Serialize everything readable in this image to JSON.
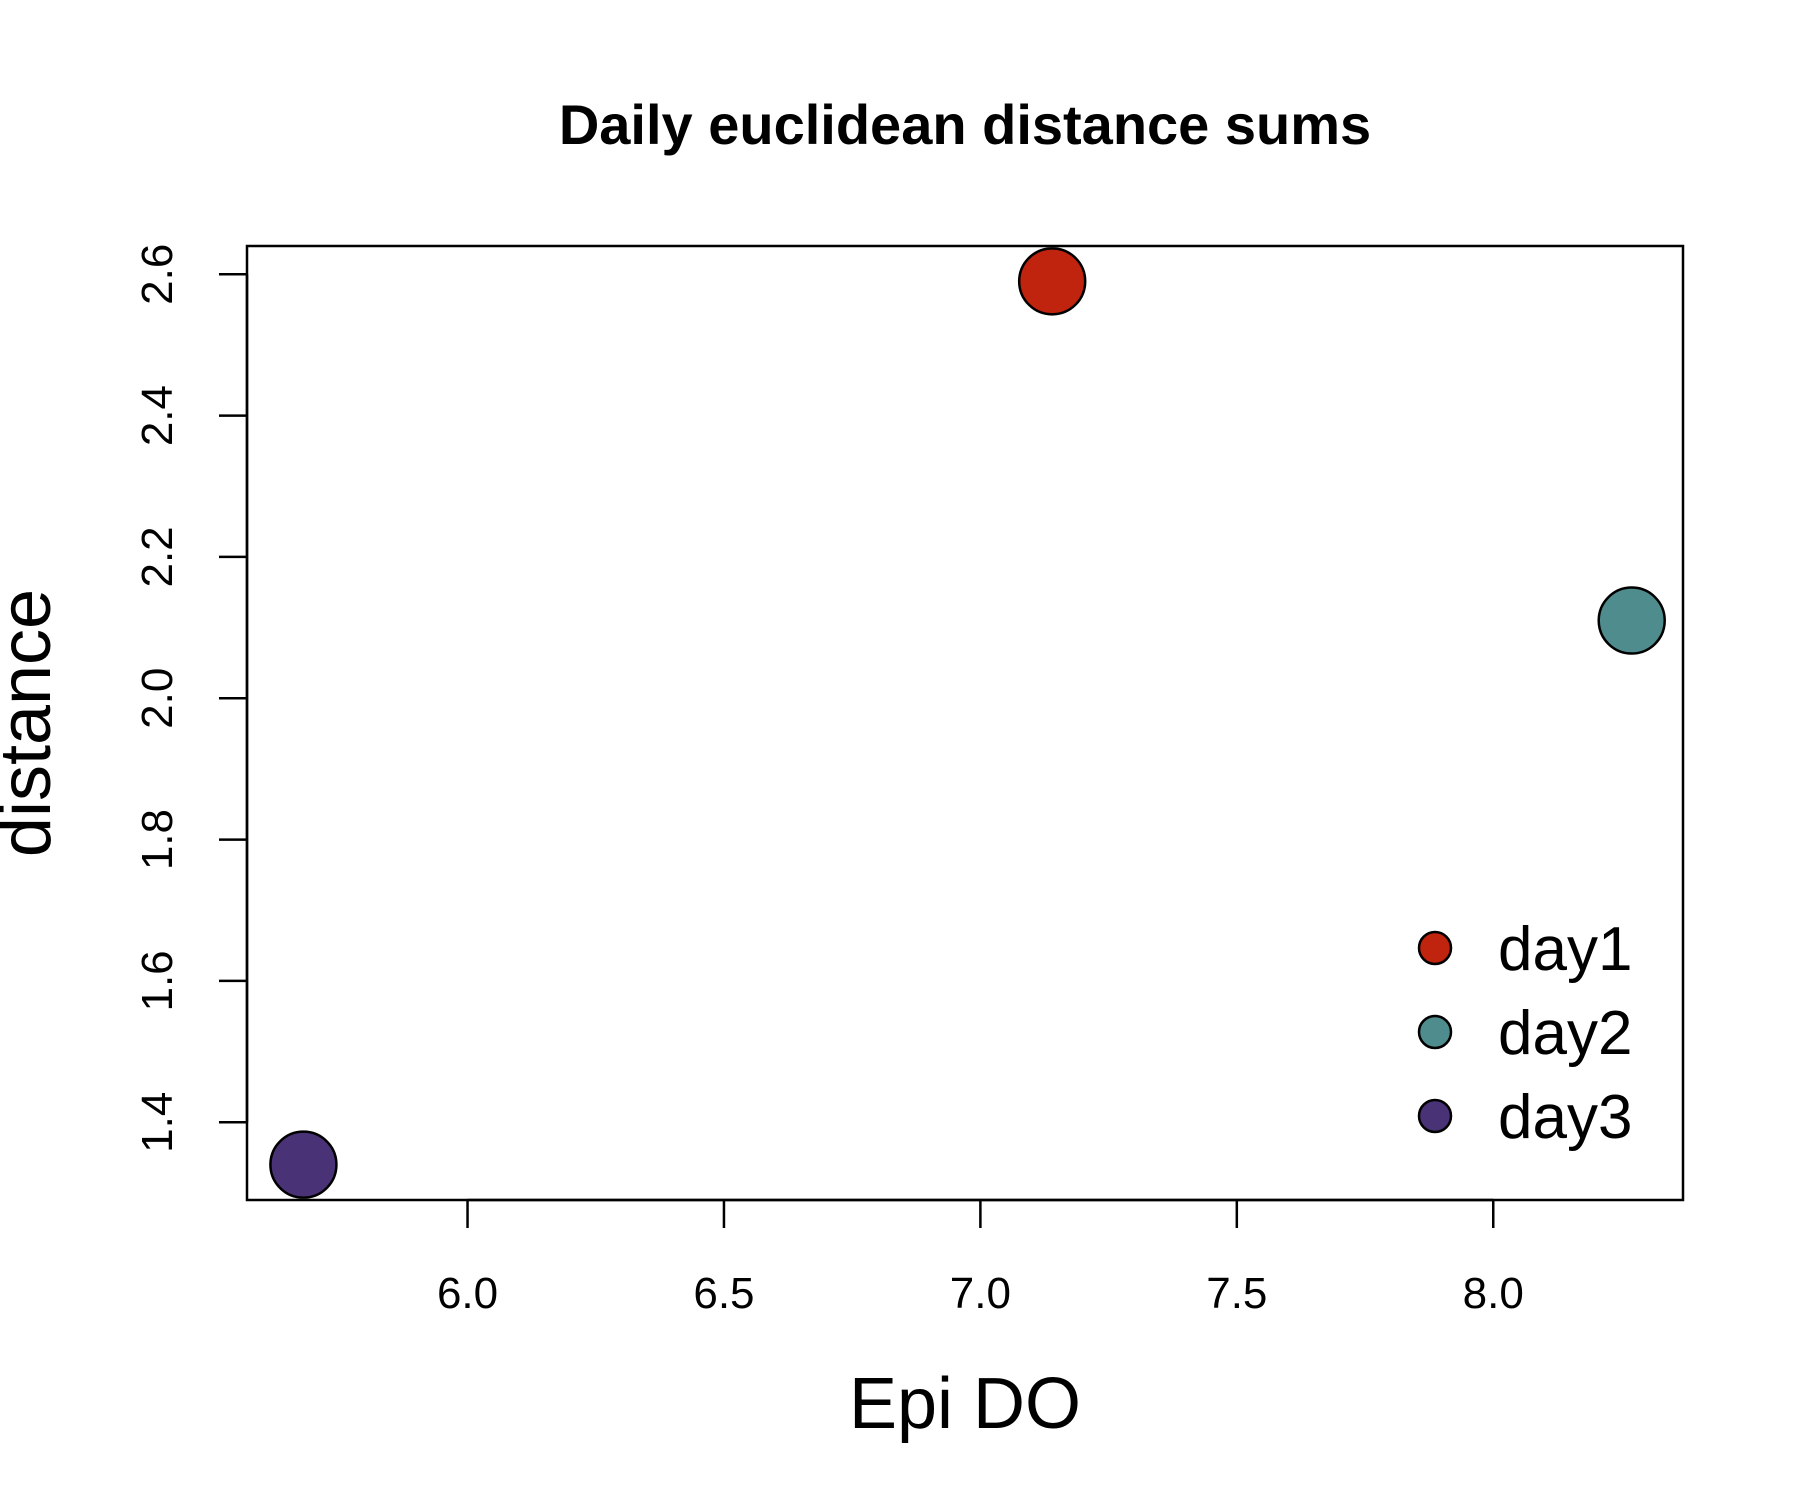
{
  "chart_data": {
    "type": "scatter",
    "title": "Daily euclidean distance sums",
    "xlabel": "Epi DO",
    "ylabel": "distance",
    "xlim": [
      5.57,
      8.37
    ],
    "ylim": [
      1.29,
      2.64
    ],
    "x_ticks": [
      6.0,
      6.5,
      7.0,
      7.5,
      8.0
    ],
    "x_tick_labels": [
      "6.0",
      "6.5",
      "7.0",
      "7.5",
      "8.0"
    ],
    "y_ticks": [
      1.4,
      1.6,
      1.8,
      2.0,
      2.2,
      2.4,
      2.6
    ],
    "y_tick_labels": [
      "1.4",
      "1.6",
      "1.8",
      "2.0",
      "2.2",
      "2.4",
      "2.6"
    ],
    "grid": false,
    "legend_position": "bottom-right",
    "series": [
      {
        "name": "day1",
        "color": "#C0230E",
        "x": [
          7.14
        ],
        "y": [
          2.59
        ]
      },
      {
        "name": "day2",
        "color": "#4F8C8D",
        "x": [
          8.27
        ],
        "y": [
          2.11
        ]
      },
      {
        "name": "day3",
        "color": "#4A3277",
        "x": [
          5.68
        ],
        "y": [
          1.34
        ]
      }
    ]
  }
}
